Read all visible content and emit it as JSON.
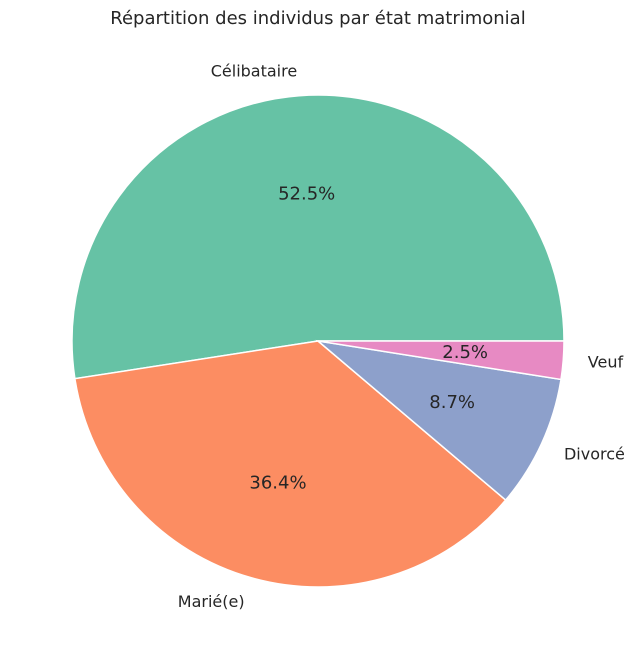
{
  "chart_data": {
    "type": "pie",
    "title": "Répartition des individus par état matrimonial",
    "categories": [
      "Célibataire",
      "Marié(e)",
      "Divorcé",
      "Veuf"
    ],
    "values": [
      52.5,
      36.4,
      8.7,
      2.5
    ],
    "value_labels": [
      "52.5%",
      "36.4%",
      "8.7%",
      "2.5%"
    ],
    "colors": [
      "#66c2a5",
      "#fc8d62",
      "#8da0cb",
      "#e78ac3"
    ],
    "start_angle_deg": 0,
    "direction": "counterclockwise",
    "legend": "none"
  }
}
